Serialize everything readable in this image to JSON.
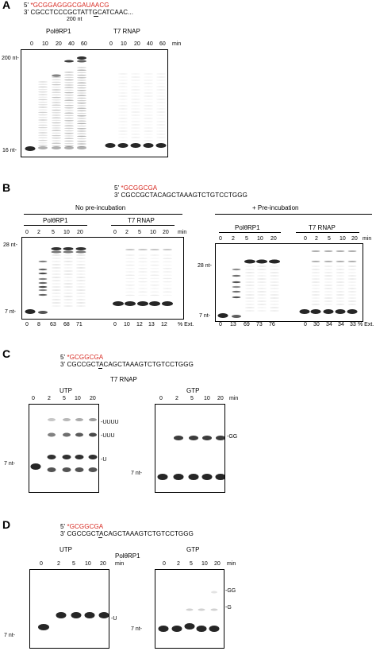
{
  "colors": {
    "primer": "#d7261e",
    "band": "#1a1a1a"
  },
  "panelA": {
    "letter": "A",
    "primer_5": "5'",
    "primer_star": "*",
    "primer_seq": "GCGGAGGGCGAUAACG",
    "template_3": "3'",
    "template_seq": "CGCCTCCCGCTATTGCATCAAC...",
    "length_label": "200 nt",
    "group1": "PolθRP1",
    "group2": "T7 RNAP",
    "times1": [
      "0",
      "10",
      "20",
      "40",
      "60"
    ],
    "times2": [
      "0",
      "10",
      "20",
      "40",
      "60"
    ],
    "unit": "min",
    "marker_top": "200 nt-",
    "marker_bottom": "16 nt-"
  },
  "panelB": {
    "letter": "B",
    "primer_5": "5'",
    "primer_star": "*",
    "primer_seq": "GCGGCGA",
    "template_3": "3'",
    "template_seq": "CGCCGCTACAGCTAAAGTCTGTCCTGGG",
    "left_condition": "No pre-incubation",
    "right_condition": "+ Pre-incubation",
    "group1": "PolθRP1",
    "group2": "T7 RNAP",
    "times": [
      "0",
      "2",
      "5",
      "10",
      "20"
    ],
    "unit": "min",
    "marker_top": "28 nt-",
    "marker_bottom": "7 nt-",
    "left_ext_pol": [
      "0",
      "8",
      "63",
      "68",
      "71"
    ],
    "left_ext_t7": [
      "0",
      "10",
      "12",
      "13",
      "12"
    ],
    "right_ext_pol": [
      "0",
      "13",
      "69",
      "73",
      "76"
    ],
    "right_ext_t7": [
      "0",
      "30",
      "34",
      "34",
      "33"
    ],
    "ext_unit": "% Ext."
  },
  "panelC": {
    "letter": "C",
    "primer_5": "5'",
    "primer_star": "*",
    "primer_seq": "GCGGCGA",
    "template_3": "3'",
    "template_seq": "CGCCGCTACAGCTAAAGTCTGTCCTGGG",
    "enzyme": "T7 RNAP",
    "left_nt": "UTP",
    "right_nt": "GTP",
    "times": [
      "0",
      "2",
      "5",
      "10",
      "20"
    ],
    "unit": "min",
    "marker": "7 nt-",
    "left_bands": [
      "-UUUU",
      "-UUU",
      "-U"
    ],
    "right_bands": [
      "-GG"
    ]
  },
  "panelD": {
    "letter": "D",
    "primer_5": "5'",
    "primer_star": "*",
    "primer_seq": "GCGGCGA",
    "template_3": "3'",
    "template_seq": "CGCCGCTACAGCTAAAGTCTGTCCTGGG",
    "enzyme": "PolθRP1",
    "left_nt": "UTP",
    "right_nt": "GTP",
    "times": [
      "0",
      "2",
      "5",
      "10",
      "20"
    ],
    "unit": "min",
    "marker": "7 nt-",
    "left_bands": [
      "-U"
    ],
    "right_bands": [
      "-GG",
      "-G"
    ]
  }
}
